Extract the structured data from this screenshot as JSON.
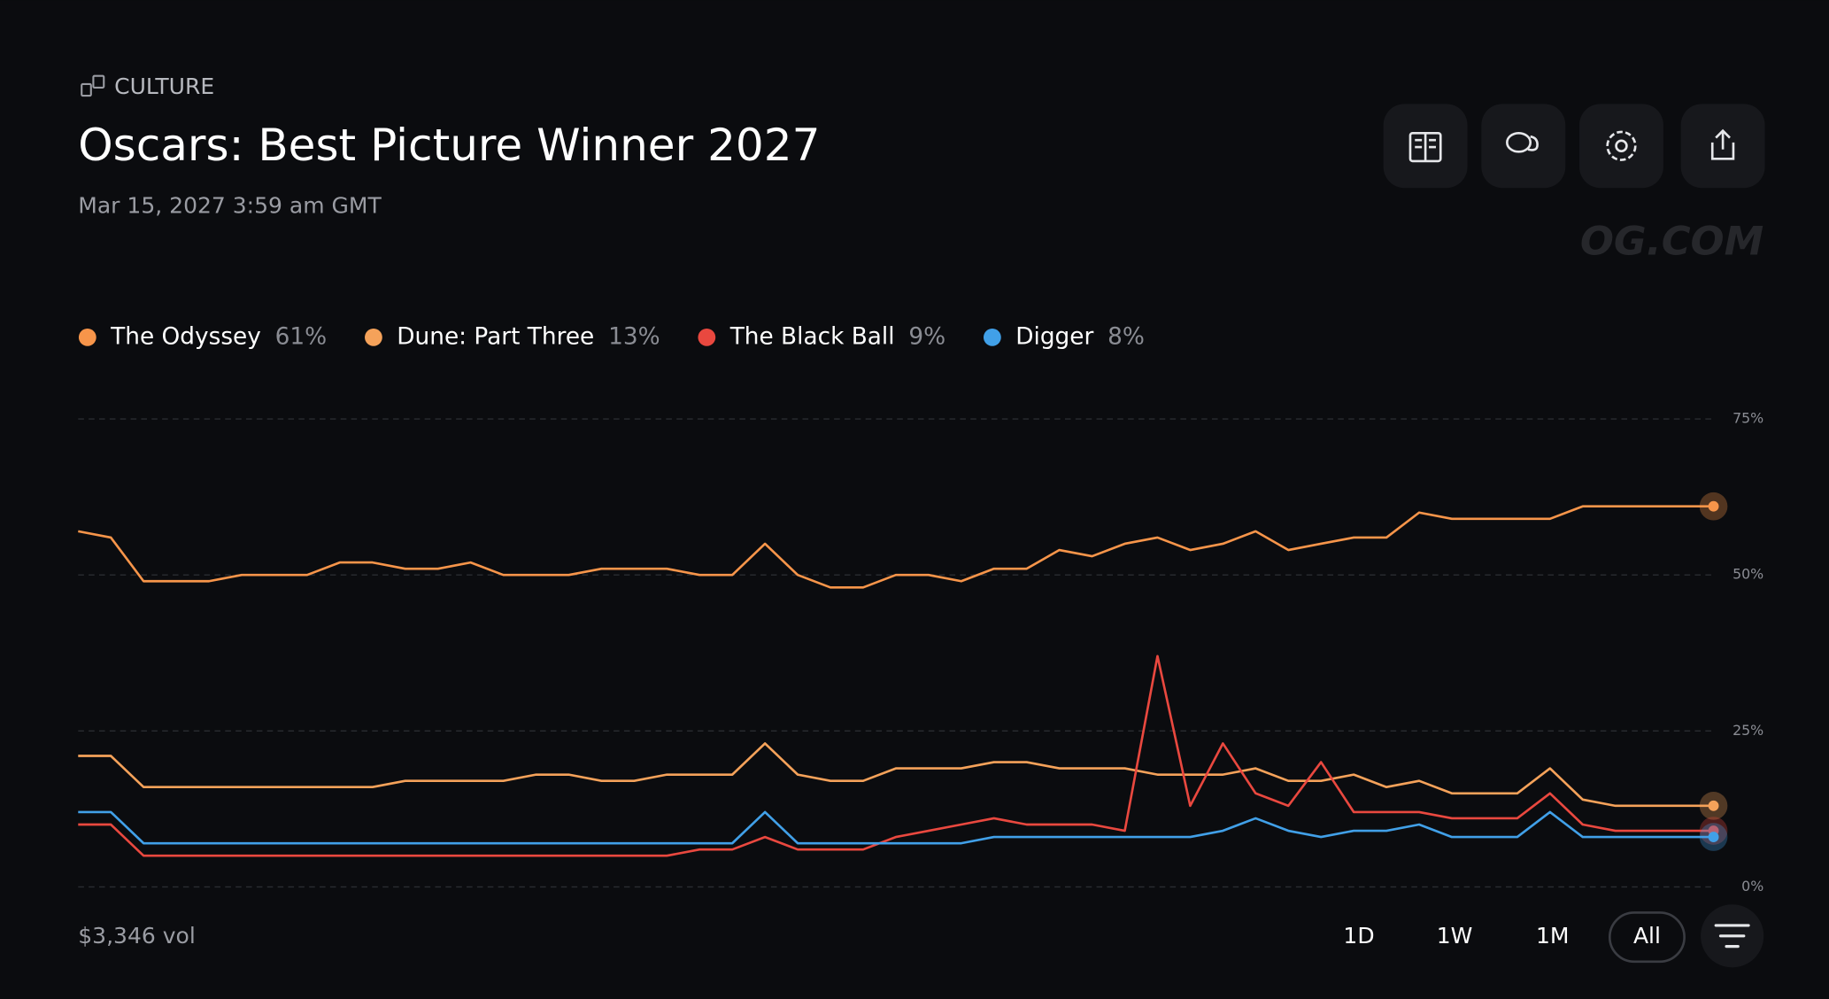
{
  "header": {
    "category": "CULTURE",
    "title": "Oscars: Best Picture Winner 2027",
    "date": "Mar 15, 2027 3:59 am GMT",
    "watermark": "OG.COM"
  },
  "chart_data": {
    "type": "line",
    "ylim": [
      0,
      75
    ],
    "yticks": [
      {
        "value": 0,
        "label": "0%"
      },
      {
        "value": 25,
        "label": "25%"
      },
      {
        "value": 50,
        "label": "50%"
      },
      {
        "value": 75,
        "label": "75%"
      }
    ],
    "grid": true,
    "series": [
      {
        "name": "The Odyssey",
        "legend_value": "61%",
        "color": "#f7954a",
        "values": [
          57,
          56,
          49,
          49,
          49,
          50,
          50,
          50,
          52,
          52,
          51,
          51,
          52,
          50,
          50,
          50,
          51,
          51,
          51,
          50,
          50,
          55,
          50,
          48,
          48,
          50,
          50,
          49,
          51,
          51,
          54,
          53,
          55,
          56,
          54,
          55,
          57,
          54,
          55,
          56,
          56,
          60,
          59,
          59,
          59,
          59,
          61,
          61,
          61,
          61,
          61
        ]
      },
      {
        "name": "Dune: Part Three",
        "legend_value": "13%",
        "color": "#f5a25a",
        "values": [
          21,
          21,
          16,
          16,
          16,
          16,
          16,
          16,
          16,
          16,
          17,
          17,
          17,
          17,
          18,
          18,
          17,
          17,
          18,
          18,
          18,
          23,
          18,
          17,
          17,
          19,
          19,
          19,
          20,
          20,
          19,
          19,
          19,
          18,
          18,
          18,
          19,
          17,
          17,
          18,
          16,
          17,
          15,
          15,
          15,
          19,
          14,
          13,
          13,
          13,
          13
        ]
      },
      {
        "name": "The Black Ball",
        "legend_value": "9%",
        "color": "#e9483f",
        "values": [
          10,
          10,
          5,
          5,
          5,
          5,
          5,
          5,
          5,
          5,
          5,
          5,
          5,
          5,
          5,
          5,
          5,
          5,
          5,
          6,
          6,
          8,
          6,
          6,
          6,
          8,
          9,
          10,
          11,
          10,
          10,
          10,
          9,
          37,
          13,
          23,
          15,
          13,
          20,
          12,
          12,
          12,
          11,
          11,
          11,
          15,
          10,
          9,
          9,
          9,
          9
        ]
      },
      {
        "name": "Digger",
        "legend_value": "8%",
        "color": "#41a0e8",
        "values": [
          12,
          12,
          7,
          7,
          7,
          7,
          7,
          7,
          7,
          7,
          7,
          7,
          7,
          7,
          7,
          7,
          7,
          7,
          7,
          7,
          7,
          12,
          7,
          7,
          7,
          7,
          7,
          7,
          8,
          8,
          8,
          8,
          8,
          8,
          8,
          9,
          11,
          9,
          8,
          9,
          9,
          10,
          8,
          8,
          8,
          12,
          8,
          8,
          8,
          8,
          8
        ]
      }
    ]
  },
  "footer": {
    "volume": "$3,346 vol",
    "ranges": [
      "1D",
      "1W",
      "1M",
      "All"
    ]
  }
}
